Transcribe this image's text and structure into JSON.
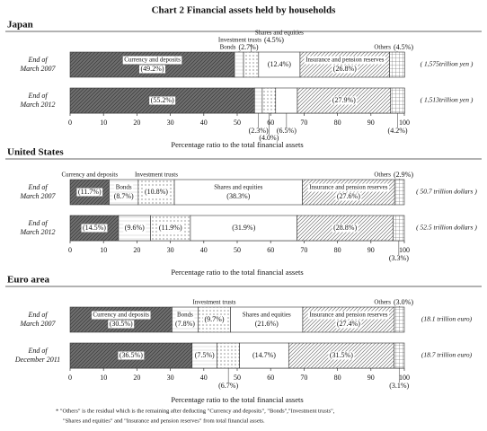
{
  "title": "Chart 2 Financial assets held by households",
  "footnote": [
    "* \"Others\" is the residual which is the remaining after deducting \"Currency and deposits\", \"Bonds\",\"Investment trusts\",",
    "\"Shares and equities\" and \"Insurance and pension reserves\" from total financial assets."
  ],
  "chart_data": [
    {
      "type": "bar",
      "orientation": "horizontal",
      "stacked": true,
      "title": "Japan",
      "categories": [
        "End of March 2007",
        "End of March 2012"
      ],
      "totals": [
        "( 1,575trillion yen )",
        "( 1,513trillion yen )"
      ],
      "xlabel": "Percentage ratio to the total financial assets",
      "xlim": [
        0,
        100
      ],
      "xticks": [
        0,
        10,
        20,
        30,
        40,
        50,
        60,
        70,
        80,
        90,
        100
      ],
      "series": [
        {
          "name": "Currency and deposits",
          "color": "#6f6f6f",
          "pattern": "hatch",
          "values": [
            49.2,
            55.2
          ],
          "value_labels": [
            "(49.2%)",
            "(55.2%)"
          ]
        },
        {
          "name": "Bonds",
          "color": "#ffffff",
          "pattern": "hlines",
          "values": [
            2.7,
            2.3
          ],
          "value_labels": [
            "(2.7%)",
            "(2.3%)"
          ]
        },
        {
          "name": "Investment trusts",
          "color": "#ffffff",
          "pattern": "dots",
          "values": [
            4.5,
            4.0
          ],
          "value_labels": [
            "(4.5%)",
            "(4.0%)"
          ]
        },
        {
          "name": "Shares and equities",
          "color": "#ffffff",
          "pattern": "none",
          "values": [
            12.4,
            6.5
          ],
          "value_labels": [
            "(12.4%)",
            "(6.5%)"
          ]
        },
        {
          "name": "Insurance and pension reserves",
          "color": "#ffffff",
          "pattern": "hatch",
          "values": [
            26.8,
            27.9
          ],
          "value_labels": [
            "(26.8%)",
            "(27.9%)"
          ]
        },
        {
          "name": "Others",
          "color": "#ffffff",
          "pattern": "grid",
          "values": [
            4.5,
            4.2
          ],
          "value_labels": [
            "(4.5%)",
            "(4.2%)"
          ]
        }
      ]
    },
    {
      "type": "bar",
      "orientation": "horizontal",
      "stacked": true,
      "title": "United States",
      "categories": [
        "End of March 2007",
        "End of March 2012"
      ],
      "totals": [
        "( 50.7 trillion dollars )",
        "( 52.5 trillion dollars )"
      ],
      "xlabel": "Percentage ratio to the total financial assets",
      "xlim": [
        0,
        100
      ],
      "xticks": [
        0,
        10,
        20,
        30,
        40,
        50,
        60,
        70,
        80,
        90,
        100
      ],
      "series": [
        {
          "name": "Currency and deposits",
          "color": "#6f6f6f",
          "pattern": "hatch",
          "values": [
            11.7,
            14.5
          ],
          "value_labels": [
            "(11.7%)",
            "(14.5%)"
          ]
        },
        {
          "name": "Bonds",
          "color": "#ffffff",
          "pattern": "hlines",
          "values": [
            8.7,
            9.6
          ],
          "value_labels": [
            "(8.7%)",
            "(9.6%)"
          ]
        },
        {
          "name": "Investment trusts",
          "color": "#ffffff",
          "pattern": "dots",
          "values": [
            10.8,
            11.9
          ],
          "value_labels": [
            "(10.8%)",
            "(11.9%)"
          ]
        },
        {
          "name": "Shares and equities",
          "color": "#ffffff",
          "pattern": "none",
          "values": [
            38.3,
            31.9
          ],
          "value_labels": [
            "(38.3%)",
            "(31.9%)"
          ]
        },
        {
          "name": "Insurance and pension reserves",
          "color": "#ffffff",
          "pattern": "hatch",
          "values": [
            27.6,
            28.8
          ],
          "value_labels": [
            "(27.6%)",
            "(28.8%)"
          ]
        },
        {
          "name": "Others",
          "color": "#ffffff",
          "pattern": "grid",
          "values": [
            2.9,
            3.3
          ],
          "value_labels": [
            "(2.9%)",
            "(3.3%)"
          ]
        }
      ]
    },
    {
      "type": "bar",
      "orientation": "horizontal",
      "stacked": true,
      "title": "Euro area",
      "categories": [
        "End of March 2007",
        "End of December 2011"
      ],
      "totals": [
        "(18.1 trillion euro)",
        "(18.7 trillion euro)"
      ],
      "xlabel": "Percentage ratio to the total financial assets",
      "xlim": [
        0,
        100
      ],
      "xticks": [
        0,
        10,
        20,
        30,
        40,
        50,
        60,
        70,
        80,
        90,
        100
      ],
      "series": [
        {
          "name": "Currency and deposits",
          "color": "#6f6f6f",
          "pattern": "hatch",
          "values": [
            30.5,
            36.5
          ],
          "value_labels": [
            "(30.5%)",
            "(36.5%)"
          ]
        },
        {
          "name": "Bonds",
          "color": "#ffffff",
          "pattern": "hlines",
          "values": [
            7.8,
            7.5
          ],
          "value_labels": [
            "(7.8%)",
            "(7.5%)"
          ]
        },
        {
          "name": "Investment trusts",
          "color": "#ffffff",
          "pattern": "dots",
          "values": [
            9.7,
            6.7
          ],
          "value_labels": [
            "(9.7%)",
            "(6.7%)"
          ]
        },
        {
          "name": "Shares and equities",
          "color": "#ffffff",
          "pattern": "none",
          "values": [
            21.6,
            14.7
          ],
          "value_labels": [
            "(21.6%)",
            "(14.7%)"
          ]
        },
        {
          "name": "Insurance and pension reserves",
          "color": "#ffffff",
          "pattern": "hatch",
          "values": [
            27.4,
            31.5
          ],
          "value_labels": [
            "(27.4%)",
            "(31.5%)"
          ]
        },
        {
          "name": "Others",
          "color": "#ffffff",
          "pattern": "grid",
          "values": [
            3.0,
            3.1
          ],
          "value_labels": [
            "(3.0%)",
            "(3.1%)"
          ]
        }
      ]
    }
  ]
}
